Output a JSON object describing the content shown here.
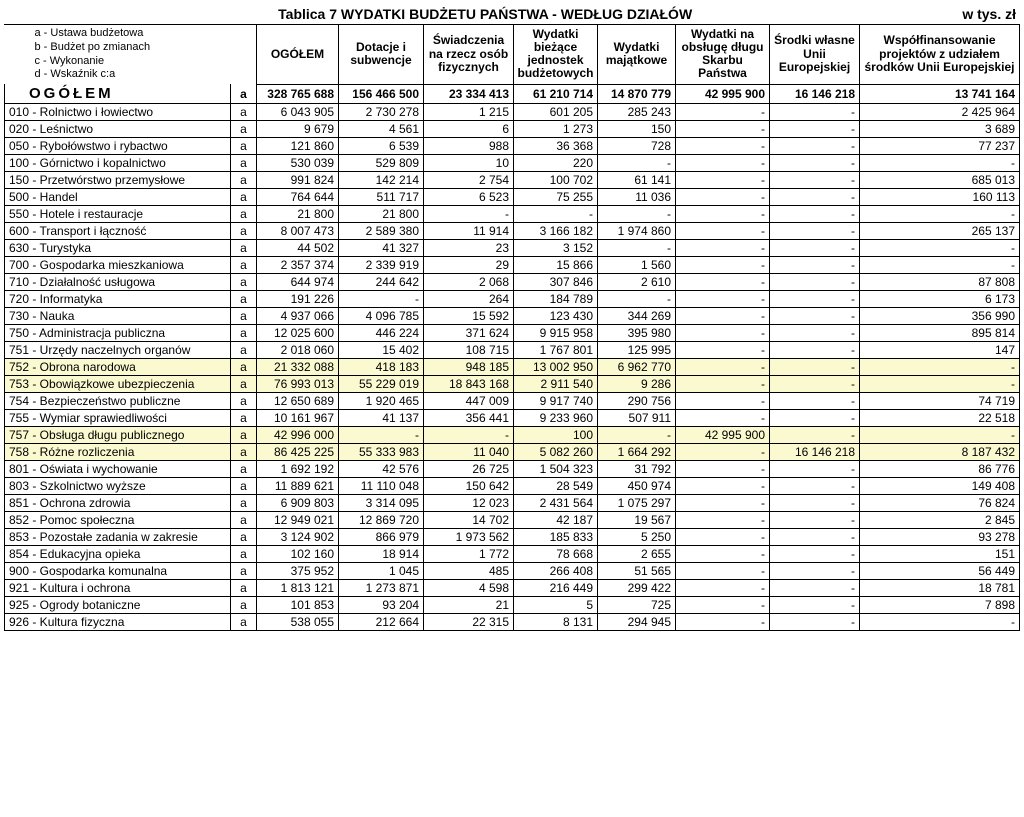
{
  "title": "Tablica 7 WYDATKI  BUDŻETU  PAŃSTWA  -  WEDŁUG  DZIAŁÓW",
  "unit_label": "w tys. zł",
  "legend": {
    "a": "a - Ustawa budżetowa",
    "b": "b - Budżet po zmianach",
    "c": "c - Wykonanie",
    "d": "d - Wskaźnik c:a"
  },
  "columns": {
    "ogolem": "OGÓŁEM",
    "dotacje": "Dotacje i subwencje",
    "swiadczenia": "Świadczenia na rzecz osób fizycznych",
    "wyd_biezace": "Wydatki bieżące jednostek budżetowych",
    "wyd_majatk": "Wydatki majątkowe",
    "wyd_obsluga": "Wydatki na obsługę długu Skarbu Państwa",
    "srodki": "Środki własne Unii Europejskiej",
    "wspol": "Współfinansowanie projektów z udziałem środków Unii Europejskiej"
  },
  "total_label": "OGÓŁEM",
  "marker": "a",
  "highlight_color": "#fbf9d0",
  "rows": [
    {
      "label": "OGÓŁEM",
      "total": true,
      "v": [
        "328 765 688",
        "156 466 500",
        "23 334 413",
        "61 210 714",
        "14 870 779",
        "42 995 900",
        "16 146 218",
        "13 741 164"
      ]
    },
    {
      "label": "010 - Rolnictwo i łowiectwo",
      "v": [
        "6 043 905",
        "2 730 278",
        "1 215",
        "601 205",
        "285 243",
        "-",
        "-",
        "2 425 964"
      ]
    },
    {
      "label": "020 - Leśnictwo",
      "v": [
        "9 679",
        "4 561",
        "6",
        "1 273",
        "150",
        "-",
        "-",
        "3 689"
      ]
    },
    {
      "label": "050 - Rybołówstwo i rybactwo",
      "v": [
        "121 860",
        "6 539",
        "988",
        "36 368",
        "728",
        "-",
        "-",
        "77 237"
      ]
    },
    {
      "label": "100 - Górnictwo i kopalnictwo",
      "v": [
        "530 039",
        "529 809",
        "10",
        "220",
        "-",
        "-",
        "-",
        "-"
      ]
    },
    {
      "label": "150 - Przetwórstwo przemysłowe",
      "v": [
        "991 824",
        "142 214",
        "2 754",
        "100 702",
        "61 141",
        "-",
        "-",
        "685 013"
      ]
    },
    {
      "label": "500 - Handel",
      "v": [
        "764 644",
        "511 717",
        "6 523",
        "75 255",
        "11 036",
        "-",
        "-",
        "160 113"
      ]
    },
    {
      "label": "550 - Hotele i restauracje",
      "v": [
        "21 800",
        "21 800",
        "-",
        "-",
        "-",
        "-",
        "-",
        "-"
      ]
    },
    {
      "label": "600 - Transport i łączność",
      "v": [
        "8 007 473",
        "2 589 380",
        "11 914",
        "3 166 182",
        "1 974 860",
        "-",
        "-",
        "265 137"
      ]
    },
    {
      "label": "630 - Turystyka",
      "v": [
        "44 502",
        "41 327",
        "23",
        "3 152",
        "-",
        "-",
        "-",
        "-"
      ]
    },
    {
      "label": "700 - Gospodarka mieszkaniowa",
      "v": [
        "2 357 374",
        "2 339 919",
        "29",
        "15 866",
        "1 560",
        "-",
        "-",
        "-"
      ]
    },
    {
      "label": "710 - Działalność usługowa",
      "v": [
        "644 974",
        "244 642",
        "2 068",
        "307 846",
        "2 610",
        "-",
        "-",
        "87 808"
      ]
    },
    {
      "label": "720 - Informatyka",
      "v": [
        "191 226",
        "-",
        "264",
        "184 789",
        "-",
        "-",
        "-",
        "6 173"
      ]
    },
    {
      "label": "730 - Nauka",
      "v": [
        "4 937 066",
        "4 096 785",
        "15 592",
        "123 430",
        "344 269",
        "-",
        "-",
        "356 990"
      ]
    },
    {
      "label": "750 - Administracja publiczna",
      "v": [
        "12 025 600",
        "446 224",
        "371 624",
        "9 915 958",
        "395 980",
        "-",
        "-",
        "895 814"
      ]
    },
    {
      "label": "751 - Urzędy naczelnych organów",
      "v": [
        "2 018 060",
        "15 402",
        "108 715",
        "1 767 801",
        "125 995",
        "-",
        "-",
        "147"
      ]
    },
    {
      "label": "752 - Obrona narodowa",
      "hl": true,
      "v": [
        "21 332 088",
        "418 183",
        "948 185",
        "13 002 950",
        "6 962 770",
        "-",
        "-",
        "-"
      ]
    },
    {
      "label": "753 - Obowiązkowe ubezpieczenia",
      "hl": true,
      "v": [
        "76 993 013",
        "55 229 019",
        "18 843 168",
        "2 911 540",
        "9 286",
        "-",
        "-",
        "-"
      ]
    },
    {
      "label": "754 - Bezpieczeństwo publiczne",
      "v": [
        "12 650 689",
        "1 920 465",
        "447 009",
        "9 917 740",
        "290 756",
        "-",
        "-",
        "74 719"
      ]
    },
    {
      "label": "755 - Wymiar sprawiedliwości",
      "v": [
        "10 161 967",
        "41 137",
        "356 441",
        "9 233 960",
        "507 911",
        "-",
        "-",
        "22 518"
      ]
    },
    {
      "label": "757 - Obsługa długu publicznego",
      "hl": true,
      "v": [
        "42 996 000",
        "-",
        "-",
        "100",
        "-",
        "42 995 900",
        "-",
        "-"
      ]
    },
    {
      "label": "758 - Różne rozliczenia",
      "hl": true,
      "v": [
        "86 425 225",
        "55 333 983",
        "11 040",
        "5 082 260",
        "1 664 292",
        "-",
        "16 146 218",
        "8 187 432"
      ]
    },
    {
      "label": "801 - Oświata i wychowanie",
      "v": [
        "1 692 192",
        "42 576",
        "26 725",
        "1 504 323",
        "31 792",
        "-",
        "-",
        "86 776"
      ]
    },
    {
      "label": "803 - Szkolnictwo wyższe",
      "v": [
        "11 889 621",
        "11 110 048",
        "150 642",
        "28 549",
        "450 974",
        "-",
        "-",
        "149 408"
      ]
    },
    {
      "label": "851 - Ochrona zdrowia",
      "v": [
        "6 909 803",
        "3 314 095",
        "12 023",
        "2 431 564",
        "1 075 297",
        "-",
        "-",
        "76 824"
      ]
    },
    {
      "label": "852 - Pomoc społeczna",
      "v": [
        "12 949 021",
        "12 869 720",
        "14 702",
        "42 187",
        "19 567",
        "-",
        "-",
        "2 845"
      ]
    },
    {
      "label": "853 - Pozostałe zadania w zakresie",
      "v": [
        "3 124 902",
        "866 979",
        "1 973 562",
        "185 833",
        "5 250",
        "-",
        "-",
        "93 278"
      ]
    },
    {
      "label": "854 - Edukacyjna opieka",
      "v": [
        "102 160",
        "18 914",
        "1 772",
        "78 668",
        "2 655",
        "-",
        "-",
        "151"
      ]
    },
    {
      "label": "900 - Gospodarka komunalna",
      "v": [
        "375 952",
        "1 045",
        "485",
        "266 408",
        "51 565",
        "-",
        "-",
        "56 449"
      ]
    },
    {
      "label": "921 - Kultura i ochrona",
      "v": [
        "1 813 121",
        "1 273 871",
        "4 598",
        "216 449",
        "299 422",
        "-",
        "-",
        "18 781"
      ]
    },
    {
      "label": "925 - Ogrody botaniczne",
      "v": [
        "101 853",
        "93 204",
        "21",
        "5",
        "725",
        "-",
        "-",
        "7 898"
      ]
    },
    {
      "label": "926 - Kultura fizyczna",
      "v": [
        "538 055",
        "212 664",
        "22 315",
        "8 131",
        "294 945",
        "-",
        "-",
        "-"
      ]
    }
  ]
}
